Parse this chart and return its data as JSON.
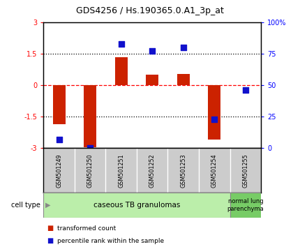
{
  "title": "GDS4256 / Hs.190365.0.A1_3p_at",
  "samples": [
    "GSM501249",
    "GSM501250",
    "GSM501251",
    "GSM501252",
    "GSM501253",
    "GSM501254",
    "GSM501255"
  ],
  "red_values": [
    -1.85,
    -2.95,
    1.35,
    0.5,
    0.55,
    -2.6,
    0.0
  ],
  "blue_values": [
    7,
    0,
    83,
    77,
    80,
    23,
    46
  ],
  "ylim_left": [
    -3,
    3
  ],
  "ylim_right": [
    0,
    100
  ],
  "yticks_left": [
    -3,
    -1.5,
    0,
    1.5,
    3
  ],
  "yticks_right": [
    0,
    25,
    50,
    75,
    100
  ],
  "ytick_labels_left": [
    "-3",
    "-1.5",
    "0",
    "1.5",
    "3"
  ],
  "ytick_labels_right": [
    "0",
    "25",
    "50",
    "75",
    "100%"
  ],
  "group1_label": "caseous TB granulomas",
  "group2_label": "normal lung\nparenchyma",
  "cell_type_label": "cell type",
  "legend_red": "transformed count",
  "legend_blue": "percentile rank within the sample",
  "bar_color": "#cc2200",
  "dot_color": "#1111cc",
  "background_color": "#ffffff",
  "plot_bg": "#ffffff",
  "group1_bg": "#bbeeaa",
  "group2_bg": "#77cc66",
  "header_bg": "#cccccc",
  "bar_width": 0.4,
  "dot_size": 30
}
